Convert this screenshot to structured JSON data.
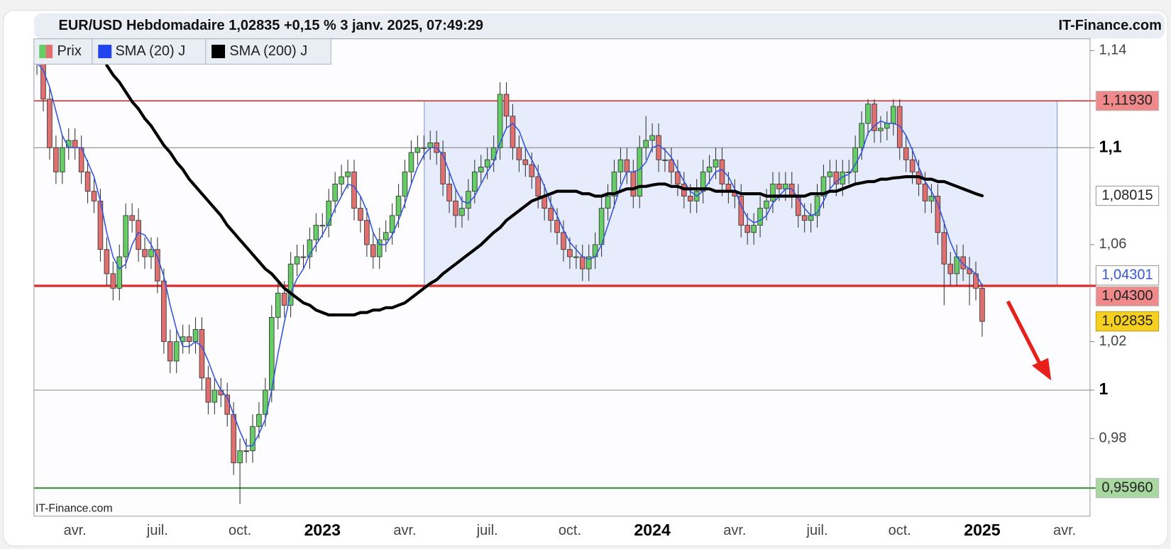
{
  "chart_data": {
    "type": "candlestick",
    "title": "EUR/USD Hebdomadaire 1,02835 +0,15 % 3 janv. 2025, 07:49:29",
    "source": "IT-Finance.com",
    "watermark": "IT-Finance.com",
    "price_name": "Prix",
    "up_color": "#66cc66",
    "down_color": "#e07070",
    "categories": [
      null,
      null,
      null,
      null,
      null,
      null,
      "avr.",
      null,
      null,
      null,
      null,
      null,
      null,
      null,
      null,
      null,
      null,
      null,
      null,
      "juil.",
      null,
      null,
      null,
      null,
      null,
      null,
      null,
      null,
      null,
      null,
      null,
      null,
      "oct.",
      null,
      null,
      null,
      null,
      null,
      null,
      null,
      null,
      null,
      null,
      null,
      null,
      "2023",
      null,
      null,
      null,
      null,
      null,
      null,
      null,
      null,
      null,
      null,
      null,
      null,
      "avr.",
      null,
      null,
      null,
      null,
      null,
      null,
      null,
      null,
      null,
      null,
      null,
      null,
      "juil.",
      null,
      null,
      null,
      null,
      null,
      null,
      null,
      null,
      null,
      null,
      null,
      null,
      "oct.",
      null,
      null,
      null,
      null,
      null,
      null,
      null,
      null,
      null,
      null,
      null,
      null,
      "2024",
      null,
      null,
      null,
      null,
      null,
      null,
      null,
      null,
      null,
      null,
      null,
      null,
      "avr.",
      null,
      null,
      null,
      null,
      null,
      null,
      null,
      null,
      null,
      null,
      null,
      null,
      "juil.",
      null,
      null,
      null,
      null,
      null,
      null,
      null,
      null,
      null,
      null,
      null,
      null,
      "oct.",
      null,
      null,
      null,
      null,
      null,
      null,
      null,
      null,
      null,
      null,
      null,
      null,
      "2025",
      null,
      null,
      null,
      null,
      null,
      null,
      null,
      null,
      null,
      null,
      null,
      null,
      "avr.",
      null,
      null,
      null,
      null
    ],
    "open": [
      1.14,
      1.135,
      1.12,
      1.1,
      1.09,
      1.1,
      1.103,
      1.1,
      1.09,
      1.082,
      1.078,
      1.058,
      1.048,
      1.042,
      1.055,
      1.072,
      1.07,
      1.058,
      1.055,
      1.058,
      1.045,
      1.02,
      1.012,
      1.02,
      1.022,
      1.02,
      1.025,
      1.005,
      0.995,
      1.0,
      0.998,
      0.99,
      0.97,
      0.975,
      0.975,
      0.985,
      0.99,
      1.0,
      1.03,
      1.04,
      1.035,
      1.052,
      1.055,
      1.055,
      1.062,
      1.068,
      1.068,
      1.078,
      1.085,
      1.088,
      1.09,
      1.075,
      1.07,
      1.06,
      1.055,
      1.062,
      1.065,
      1.072,
      1.08,
      1.09,
      1.098,
      1.1,
      1.1,
      1.102,
      1.098,
      1.085,
      1.078,
      1.072,
      1.075,
      1.082,
      1.09,
      1.092,
      1.095,
      1.1,
      1.122,
      1.113,
      1.1,
      1.095,
      1.093,
      1.088,
      1.08,
      1.075,
      1.07,
      1.065,
      1.058,
      1.055,
      1.055,
      1.05,
      1.055,
      1.06,
      1.075,
      1.08,
      1.09,
      1.095,
      1.09,
      1.08,
      1.1,
      1.103,
      1.105,
      1.095,
      1.095,
      1.09,
      1.085,
      1.08,
      1.078,
      1.082,
      1.09,
      1.092,
      1.095,
      1.085,
      1.082,
      1.08,
      1.068,
      1.065,
      1.068,
      1.075,
      1.078,
      1.085,
      1.083,
      1.085,
      1.08,
      1.072,
      1.07,
      1.072,
      1.08,
      1.088,
      1.09,
      1.085,
      1.09,
      1.09,
      1.1,
      1.11,
      1.118,
      1.107,
      1.108,
      1.11,
      1.117,
      1.1,
      1.095,
      1.09,
      1.085,
      1.078,
      1.08,
      1.065,
      1.052,
      1.048,
      1.055,
      1.05,
      1.048,
      1.042,
      null,
      null,
      null,
      null,
      null,
      null,
      null,
      null,
      null,
      null,
      null,
      null,
      null,
      null,
      null,
      null,
      null
    ],
    "high": [
      1.143,
      1.14,
      1.125,
      1.105,
      1.105,
      1.108,
      1.108,
      1.105,
      1.095,
      1.087,
      1.083,
      1.063,
      1.053,
      1.06,
      1.077,
      1.077,
      1.075,
      1.063,
      1.063,
      1.063,
      1.05,
      1.025,
      1.025,
      1.027,
      1.027,
      1.03,
      1.03,
      1.01,
      1.005,
      1.005,
      1.003,
      0.995,
      0.98,
      0.98,
      0.99,
      0.995,
      1.005,
      1.035,
      1.045,
      1.045,
      1.057,
      1.06,
      1.06,
      1.067,
      1.073,
      1.073,
      1.083,
      1.09,
      1.093,
      1.095,
      1.095,
      1.08,
      1.075,
      1.065,
      1.067,
      1.07,
      1.077,
      1.085,
      1.095,
      1.103,
      1.105,
      1.105,
      1.107,
      1.107,
      1.103,
      1.09,
      1.083,
      1.08,
      1.087,
      1.095,
      1.097,
      1.1,
      1.105,
      1.127,
      1.127,
      1.118,
      1.105,
      1.1,
      1.098,
      1.093,
      1.085,
      1.08,
      1.075,
      1.07,
      1.063,
      1.06,
      1.06,
      1.06,
      1.065,
      1.08,
      1.085,
      1.095,
      1.1,
      1.1,
      1.095,
      1.105,
      1.113,
      1.11,
      1.11,
      1.1,
      1.1,
      1.095,
      1.09,
      1.085,
      1.087,
      1.095,
      1.097,
      1.1,
      1.1,
      1.09,
      1.087,
      1.085,
      1.073,
      1.073,
      1.08,
      1.083,
      1.09,
      1.09,
      1.09,
      1.09,
      1.085,
      1.077,
      1.077,
      1.085,
      1.093,
      1.095,
      1.095,
      1.095,
      1.095,
      1.105,
      1.115,
      1.12,
      1.12,
      1.113,
      1.115,
      1.12,
      1.12,
      1.105,
      1.1,
      1.095,
      1.09,
      1.085,
      1.085,
      1.07,
      1.057,
      1.06,
      1.06,
      1.055,
      1.053,
      1.044,
      null,
      null,
      null,
      null,
      null,
      null,
      null,
      null,
      null,
      null,
      null,
      null,
      null,
      null,
      null,
      null,
      null
    ],
    "low": [
      1.13,
      1.115,
      1.095,
      1.085,
      1.085,
      1.095,
      1.095,
      1.085,
      1.077,
      1.073,
      1.053,
      1.043,
      1.037,
      1.037,
      1.05,
      1.065,
      1.053,
      1.05,
      1.05,
      1.04,
      1.015,
      1.007,
      1.007,
      1.015,
      1.015,
      1.015,
      1.0,
      0.99,
      0.99,
      0.993,
      0.985,
      0.965,
      0.953,
      0.97,
      0.97,
      0.98,
      0.985,
      0.995,
      1.025,
      1.03,
      1.03,
      1.047,
      1.05,
      1.05,
      1.057,
      1.063,
      1.063,
      1.073,
      1.08,
      1.083,
      1.07,
      1.065,
      1.055,
      1.05,
      1.05,
      1.057,
      1.06,
      1.067,
      1.075,
      1.085,
      1.093,
      1.095,
      1.095,
      1.093,
      1.08,
      1.073,
      1.067,
      1.067,
      1.07,
      1.077,
      1.085,
      1.087,
      1.09,
      1.095,
      1.108,
      1.095,
      1.09,
      1.088,
      1.083,
      1.075,
      1.07,
      1.065,
      1.06,
      1.053,
      1.05,
      1.05,
      1.045,
      1.045,
      1.05,
      1.055,
      1.07,
      1.075,
      1.085,
      1.085,
      1.075,
      1.075,
      1.095,
      1.098,
      1.09,
      1.09,
      1.085,
      1.08,
      1.075,
      1.073,
      1.073,
      1.077,
      1.085,
      1.087,
      1.08,
      1.077,
      1.075,
      1.063,
      1.06,
      1.06,
      1.063,
      1.07,
      1.073,
      1.078,
      1.078,
      1.075,
      1.067,
      1.065,
      1.065,
      1.067,
      1.075,
      1.083,
      1.08,
      1.08,
      1.085,
      1.085,
      1.095,
      1.105,
      1.102,
      1.102,
      1.103,
      1.105,
      1.095,
      1.09,
      1.085,
      1.08,
      1.073,
      1.073,
      1.06,
      1.035,
      1.043,
      1.043,
      1.045,
      1.035,
      1.037,
      1.022,
      null,
      null,
      null,
      null,
      null,
      null,
      null,
      null,
      null,
      null,
      null,
      null,
      null,
      null,
      null,
      null,
      null
    ],
    "close": [
      1.135,
      1.12,
      1.1,
      1.09,
      1.1,
      1.103,
      1.1,
      1.09,
      1.082,
      1.078,
      1.058,
      1.048,
      1.042,
      1.055,
      1.072,
      1.07,
      1.058,
      1.055,
      1.058,
      1.045,
      1.02,
      1.012,
      1.02,
      1.022,
      1.02,
      1.025,
      1.005,
      0.995,
      1.0,
      0.998,
      0.99,
      0.97,
      0.975,
      0.975,
      0.985,
      0.99,
      1.0,
      1.03,
      1.04,
      1.035,
      1.052,
      1.055,
      1.055,
      1.062,
      1.068,
      1.068,
      1.078,
      1.085,
      1.088,
      1.09,
      1.075,
      1.07,
      1.06,
      1.055,
      1.062,
      1.065,
      1.072,
      1.08,
      1.09,
      1.098,
      1.1,
      1.1,
      1.102,
      1.098,
      1.085,
      1.078,
      1.072,
      1.075,
      1.082,
      1.09,
      1.092,
      1.095,
      1.1,
      1.122,
      1.113,
      1.1,
      1.095,
      1.093,
      1.088,
      1.08,
      1.075,
      1.07,
      1.065,
      1.058,
      1.055,
      1.055,
      1.05,
      1.055,
      1.06,
      1.075,
      1.08,
      1.09,
      1.095,
      1.09,
      1.08,
      1.1,
      1.103,
      1.105,
      1.095,
      1.095,
      1.09,
      1.085,
      1.08,
      1.078,
      1.082,
      1.09,
      1.092,
      1.095,
      1.085,
      1.082,
      1.08,
      1.068,
      1.065,
      1.068,
      1.075,
      1.078,
      1.085,
      1.083,
      1.085,
      1.08,
      1.072,
      1.07,
      1.072,
      1.08,
      1.088,
      1.09,
      1.085,
      1.09,
      1.09,
      1.1,
      1.11,
      1.118,
      1.107,
      1.108,
      1.11,
      1.117,
      1.1,
      1.095,
      1.09,
      1.085,
      1.078,
      1.08,
      1.065,
      1.052,
      1.048,
      1.055,
      1.05,
      1.048,
      1.042,
      1.02835,
      null,
      null,
      null,
      null,
      null,
      null,
      null,
      null,
      null,
      null,
      null,
      null,
      null,
      null,
      null,
      null,
      null
    ],
    "close_label": "1,02835",
    "close_label_color": "#f5d020",
    "series": [
      {
        "name": "SMA (20) J",
        "color": "#3355dd",
        "line_width": 1.5,
        "last_label": "1,04301",
        "values": [
          1.135,
          1.132,
          1.125,
          1.115,
          1.105,
          1.1,
          1.1,
          1.1,
          1.094,
          1.088,
          1.078,
          1.065,
          1.055,
          1.05,
          1.052,
          1.06,
          1.065,
          1.064,
          1.06,
          1.055,
          1.047,
          1.035,
          1.025,
          1.018,
          1.018,
          1.02,
          1.018,
          1.012,
          1.005,
          1.0,
          0.997,
          0.99,
          0.983,
          0.977,
          0.977,
          0.982,
          0.988,
          1.0,
          1.015,
          1.028,
          1.04,
          1.046,
          1.05,
          1.056,
          1.06,
          1.064,
          1.069,
          1.075,
          1.08,
          1.085,
          1.084,
          1.08,
          1.074,
          1.065,
          1.06,
          1.06,
          1.064,
          1.07,
          1.077,
          1.085,
          1.092,
          1.097,
          1.1,
          1.1,
          1.097,
          1.09,
          1.083,
          1.078,
          1.077,
          1.08,
          1.085,
          1.09,
          1.094,
          1.102,
          1.108,
          1.11,
          1.107,
          1.1,
          1.095,
          1.09,
          1.084,
          1.077,
          1.072,
          1.066,
          1.061,
          1.058,
          1.055,
          1.054,
          1.055,
          1.06,
          1.068,
          1.076,
          1.084,
          1.09,
          1.09,
          1.091,
          1.094,
          1.1,
          1.101,
          1.099,
          1.096,
          1.091,
          1.086,
          1.082,
          1.08,
          1.082,
          1.086,
          1.09,
          1.091,
          1.088,
          1.083,
          1.076,
          1.071,
          1.069,
          1.07,
          1.072,
          1.077,
          1.08,
          1.083,
          1.083,
          1.079,
          1.075,
          1.072,
          1.073,
          1.078,
          1.083,
          1.086,
          1.088,
          1.089,
          1.093,
          1.098,
          1.106,
          1.109,
          1.111,
          1.11,
          1.11,
          1.109,
          1.105,
          1.099,
          1.092,
          1.086,
          1.082,
          1.077,
          1.069,
          1.061,
          1.055,
          1.052,
          1.05,
          1.048,
          1.04301,
          null,
          null,
          null,
          null,
          null,
          null,
          null,
          null,
          null,
          null,
          null,
          null,
          null,
          null,
          null,
          null,
          null
        ]
      },
      {
        "name": "SMA (200) J",
        "color": "#000000",
        "line_width": 4,
        "last_label": "1,08015",
        "values": [
          null,
          null,
          null,
          null,
          null,
          null,
          null,
          null,
          null,
          null,
          null,
          1.134,
          1.13,
          1.127,
          1.123,
          1.119,
          1.116,
          1.112,
          1.109,
          1.105,
          1.101,
          1.098,
          1.094,
          1.091,
          1.087,
          1.084,
          1.081,
          1.078,
          1.075,
          1.072,
          1.068,
          1.065,
          1.062,
          1.059,
          1.056,
          1.053,
          1.05,
          1.048,
          1.045,
          1.042,
          1.04,
          1.038,
          1.036,
          1.035,
          1.033,
          1.032,
          1.031,
          1.031,
          1.031,
          1.031,
          1.031,
          1.032,
          1.032,
          1.033,
          1.033,
          1.034,
          1.034,
          1.035,
          1.036,
          1.038,
          1.04,
          1.042,
          1.044,
          1.0455,
          1.048,
          1.05,
          1.052,
          1.054,
          1.056,
          1.058,
          1.06,
          1.0625,
          1.065,
          1.067,
          1.07,
          1.072,
          1.074,
          1.076,
          1.078,
          1.079,
          1.08,
          1.081,
          1.082,
          1.082,
          1.082,
          1.082,
          1.081,
          1.081,
          1.08,
          1.08,
          1.081,
          1.081,
          1.082,
          1.083,
          1.083,
          1.084,
          1.084,
          1.0846,
          1.085,
          1.085,
          1.084,
          1.084,
          1.083,
          1.083,
          1.083,
          1.083,
          1.083,
          1.082,
          1.082,
          1.082,
          1.082,
          1.081,
          1.081,
          1.081,
          1.081,
          1.08,
          1.08,
          1.08,
          1.08,
          1.08,
          1.08,
          1.08,
          1.081,
          1.081,
          1.081,
          1.082,
          1.082,
          1.083,
          1.084,
          1.085,
          1.0855,
          1.086,
          1.086,
          1.087,
          1.087,
          1.0875,
          1.0877,
          1.088,
          1.088,
          1.088,
          1.087,
          1.087,
          1.086,
          1.086,
          1.085,
          1.084,
          1.083,
          1.082,
          1.081,
          1.08015,
          null,
          null,
          null,
          null,
          null,
          null,
          null,
          null,
          null,
          null,
          null,
          null,
          null,
          null,
          null,
          null,
          null
        ]
      }
    ],
    "levels": [
      {
        "value": 1.1193,
        "label": "1,11930",
        "color": "#e03030",
        "tag_color": "#f08a8a",
        "line_width": 1.5
      },
      {
        "value": 1.043,
        "label": "1,04300",
        "color": "#e02828",
        "tag_color": "#f08a8a",
        "line_width": 3
      },
      {
        "value": 0.9596,
        "label": "0,95960",
        "color": "#3a9a3a",
        "tag_color": "#a8d8a0",
        "line_width": 2
      }
    ],
    "ylim": [
      0.948,
      1.1449
    ],
    "yticks": [
      {
        "value": 0.98,
        "label": "0,98"
      },
      {
        "value": 1,
        "label": "1",
        "major": true
      },
      {
        "value": 1.02,
        "label": "1,02"
      },
      {
        "value": 1.06,
        "label": "1,06"
      },
      {
        "value": 1.1,
        "label": "1,1",
        "major": true
      },
      {
        "value": 1.14,
        "label": "1,14"
      }
    ]
  }
}
